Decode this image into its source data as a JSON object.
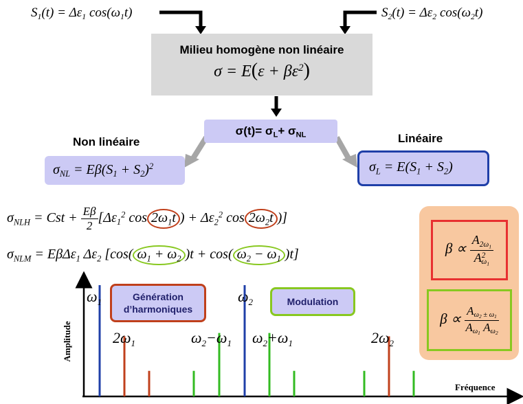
{
  "signals": {
    "s1": {
      "lhs": "S",
      "lhs_sub": "1",
      "rhs": "(t) = Δε",
      "eps_sub": "1",
      "cos": " cos(ω",
      "omega_sub": "1",
      "tail": "t)"
    },
    "s2": {
      "lhs": "S",
      "lhs_sub": "2",
      "rhs": "(t) = Δε",
      "eps_sub": "2",
      "cos": " cos(ω",
      "omega_sub": "2",
      "tail": "t)"
    }
  },
  "medium": {
    "title": "Milieu homogène non linéaire",
    "law_a": "σ = E",
    "law_b": "ε + βε",
    "law_sup": "2"
  },
  "sum": {
    "text": "σ(t)= σ",
    "sub_l": "L",
    "plus": "+ σ",
    "sub_nl": "NL"
  },
  "nonlinear": {
    "label": "Non linéaire",
    "eq_lhs": "σ",
    "eq_sub": "NL",
    "eq_rhs": " = Eβ(S",
    "s1": "1",
    "mid": " + S",
    "s2": "2",
    "end": ")",
    "sq": "2"
  },
  "linear": {
    "label": "Linéaire",
    "eq_lhs": "σ",
    "eq_sub": "L",
    "eq_rhs": " = E(S",
    "s1": "1",
    "mid": " + S",
    "s2": "2",
    "end": ")"
  },
  "eq_nlh": {
    "lhs": "σ",
    "sub": "NLH",
    "part1": " = Cst + ",
    "frac_num": "Eβ",
    "frac_den": "2",
    "part2": "[Δε",
    "e1": "1",
    "sq1": "2",
    "cos1": " cos",
    "arg1": "2ω",
    "arg1_sub": "1",
    "arg1_t": "t",
    "part3": ") + Δε",
    "e2": "2",
    "sq2": "2",
    "cos2": " cos",
    "arg2": "2ω",
    "arg2_sub": "2",
    "arg2_t": "t",
    "end": ")]"
  },
  "eq_nlm": {
    "lhs": "σ",
    "sub": "NLM",
    "part1": " = EβΔε",
    "e1": "1",
    "part2": " Δε",
    "e2": "2",
    "part3": " [cos(",
    "arg1": "ω",
    "a1s": "1",
    "arg1b": " + ω",
    "a1s2": "2",
    "part4": ")t + cos(",
    "arg2": "ω",
    "a2s": "2",
    "arg2b": " − ω",
    "a2s2": "1",
    "end": ")t]"
  },
  "ratios": {
    "r1": {
      "beta": "β ∝ ",
      "num": "A",
      "num_sub": "2ω",
      "num_subsub": "1",
      "den": "A",
      "den_sub": "ω",
      "den_subsub": "1",
      "den_sup": "2"
    },
    "r2": {
      "beta": "β ∝ ",
      "num": "A",
      "num_sub": "ω",
      "num_subsub": "2",
      "num_sub2": " ± ω",
      "num_subsub2": "1",
      "den1": "A",
      "den1_sub": "ω",
      "den1_subsub": "1",
      "den2": "A",
      "den2_sub": "ω",
      "den2_subsub": "2"
    }
  },
  "legend": {
    "harmonics": "Génération d’harmoniques",
    "modulation": "Modulation"
  },
  "colors": {
    "fundamental": "#1f3fa8",
    "harmonic": "#c0401c",
    "modulation": "#33bb22",
    "lavender": "#cccaf5",
    "orange_panel": "#f8c8a0",
    "harmonic_border": "#c0401c",
    "modulation_border": "#88c820",
    "linear_border": "#1f3fa8"
  },
  "chart_data": {
    "type": "bar",
    "xlabel": "Fréquence",
    "ylabel": "Amplitude",
    "series": [
      {
        "group": "fundamental",
        "label": "ω1",
        "x": 1.0,
        "amplitude": 1.0
      },
      {
        "group": "fundamental",
        "label": "ω2",
        "x": 3.0,
        "amplitude": 1.0
      },
      {
        "group": "harmonic",
        "label": "2ω1",
        "x": 2.0,
        "amplitude": 0.54
      },
      {
        "group": "harmonic",
        "x": 3.0,
        "amplitude": 0.23,
        "comment_free": true
      },
      {
        "group": "harmonic",
        "label": "2ω2",
        "x": 6.0,
        "amplitude": 0.54
      },
      {
        "group": "modulation",
        "label": "ω2−ω1",
        "x": 2.0,
        "amplitude": 0.57
      },
      {
        "group": "modulation",
        "label": "ω2+ω1",
        "x": 4.0,
        "amplitude": 0.57
      }
    ]
  }
}
